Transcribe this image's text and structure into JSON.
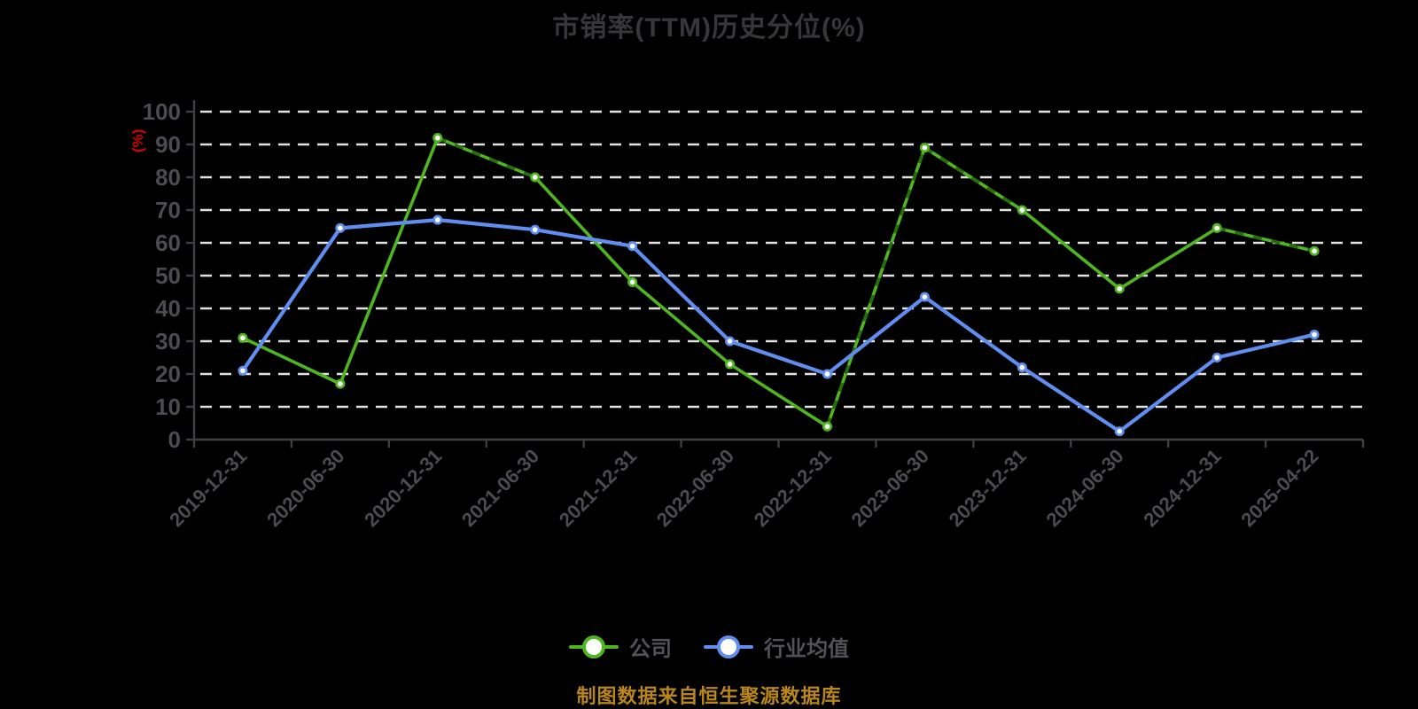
{
  "page": {
    "background": "#000000"
  },
  "title": {
    "text": "市销率(TTM)历史分位(%)",
    "color": "#37373b"
  },
  "y_axis": {
    "name": "(%)",
    "name_color": "#d60000",
    "tick_labels": [
      "0",
      "10",
      "20",
      "30",
      "40",
      "50",
      "60",
      "70",
      "80",
      "90",
      "100"
    ]
  },
  "x_axis": {
    "labels": [
      "2019-12-31",
      "2020-06-30",
      "2020-12-31",
      "2021-06-30",
      "2021-12-31",
      "2022-06-30",
      "2022-12-31",
      "2023-06-30",
      "2023-12-31",
      "2024-06-30",
      "2024-12-31",
      "2025-04-22"
    ],
    "label_rotation": -45
  },
  "legend": {
    "items": [
      {
        "label": "公司",
        "color": "#4fb61f"
      },
      {
        "label": "行业均值",
        "color": "#5f8ef0"
      }
    ]
  },
  "source_note": {
    "text": "制图数据来自恒生聚源数据库",
    "color": "#b8861b"
  },
  "style": {
    "grid_color": "#e2e2e2",
    "axis_color": "#3e3e44",
    "axis_label_color": "#4b4b51",
    "legend_text_color": "#515157",
    "marker_fill": "#ffffff"
  },
  "chart_data": {
    "type": "line",
    "title": "市销率(TTM)历史分位(%)",
    "ylabel": "(%)",
    "ylim": [
      0,
      100
    ],
    "ytick_step": 10,
    "grid": "horizontal-dashed",
    "legend_position": "bottom",
    "categories": [
      "2019-12-31",
      "2020-06-30",
      "2020-12-31",
      "2021-06-30",
      "2021-12-31",
      "2022-06-30",
      "2022-12-31",
      "2023-06-30",
      "2023-12-31",
      "2024-06-30",
      "2024-12-31",
      "2025-04-22"
    ],
    "series": [
      {
        "name": "公司",
        "name_en": "company",
        "color": "#4fb61f",
        "marker": "circle-white-fill",
        "values": [
          31,
          17,
          92,
          80,
          48,
          23,
          4,
          89,
          70,
          46,
          64.5,
          57.5
        ],
        "dash_overlay_color": "#256e0c",
        "dash_overlay_segments": [
          2,
          6,
          7,
          10
        ]
      },
      {
        "name": "行业均值",
        "name_en": "industry-average",
        "color": "#5f8ef0",
        "marker": "circle-white-fill",
        "values": [
          21,
          64.5,
          67,
          64,
          59,
          30,
          20,
          43.5,
          22,
          2.5,
          25,
          32
        ]
      }
    ]
  }
}
